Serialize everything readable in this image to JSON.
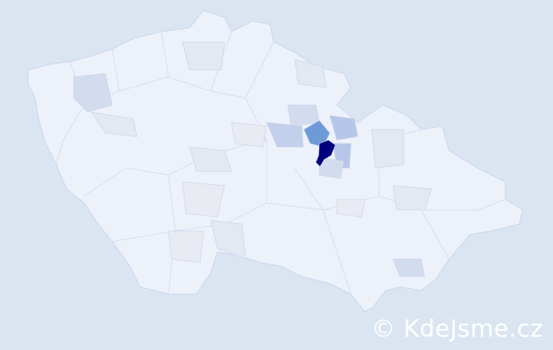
{
  "map": {
    "type": "choropleth",
    "colors": {
      "background": "#dbe5f2",
      "base": "#edf1fa",
      "border": "#c9d3ea",
      "light": "#d3dcef",
      "medium_light": "#b6c6e8",
      "medium": "#6f9ad8",
      "highest": "#00007f"
    }
  },
  "watermark": "© KdeJsme.cz"
}
